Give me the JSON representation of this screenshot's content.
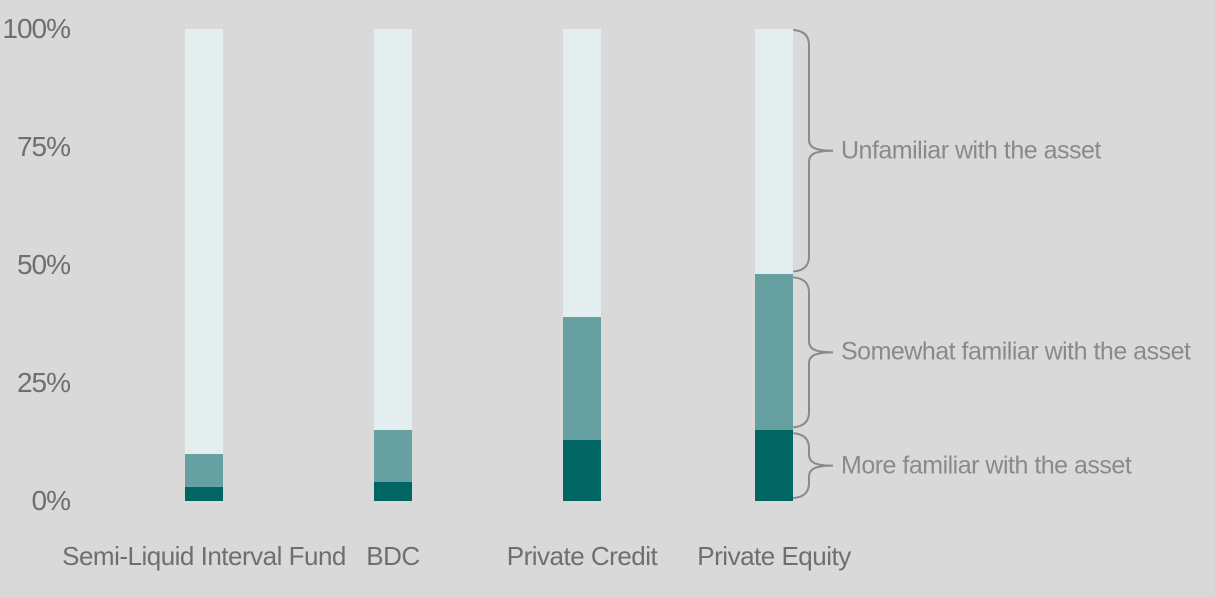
{
  "chart_data": {
    "type": "bar",
    "stacked": true,
    "title": "",
    "categories": [
      "Semi-Liquid Interval Fund",
      "BDC",
      "Private Credit",
      "Private Equity"
    ],
    "series": [
      {
        "name": "More familiar with the asset",
        "color": "#016564",
        "values": [
          3,
          4,
          13,
          15
        ]
      },
      {
        "name": "Somewhat familiar with the asset",
        "color": "#67a0a0",
        "values": [
          7,
          11,
          26,
          33
        ]
      },
      {
        "name": "Unfamiliar with the asset",
        "color": "#e4eeef",
        "values": [
          90,
          85,
          61,
          52
        ]
      }
    ],
    "y_ticks": [
      "0%",
      "25%",
      "50%",
      "75%",
      "100%"
    ],
    "ylim": [
      0,
      100
    ],
    "grid": false,
    "legend_position": "right-braces",
    "background_color": "#d9d9d9",
    "axis_text_color": "#6f6f6f",
    "annotation_text_color": "#8a8a8a"
  },
  "annotations": {
    "brackets": [
      {
        "label": "Unfamiliar with the asset"
      },
      {
        "label": "Somewhat familiar with the asset"
      },
      {
        "label": "More familiar with the asset"
      }
    ]
  }
}
